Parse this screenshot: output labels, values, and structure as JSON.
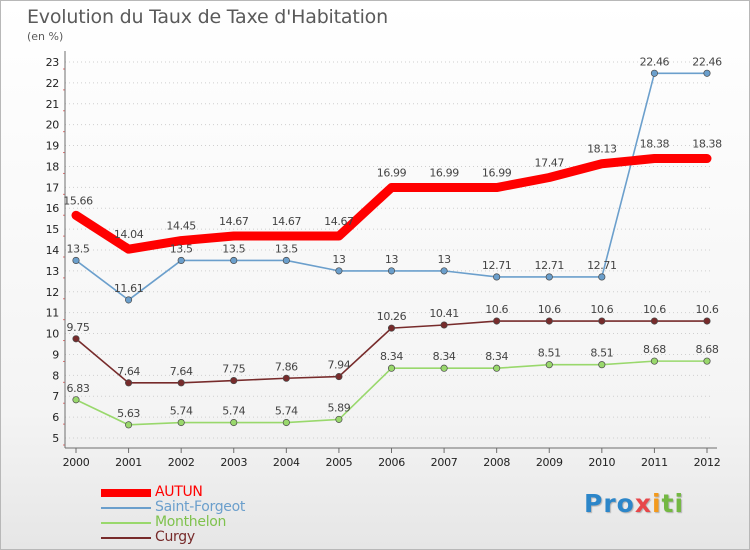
{
  "page": {
    "title": "Evolution du Taux de Taxe d'Habitation",
    "subtitle": "(en %)"
  },
  "legend": {
    "items": [
      "AUTUN",
      "Saint-Forgeot",
      "Monthelon",
      "Curgy"
    ]
  },
  "logo": {
    "parts": [
      "Pro",
      "x",
      "i",
      "ti"
    ]
  },
  "chart_data": {
    "type": "line",
    "title": "Evolution du Taux de Taxe d'Habitation",
    "subtitle": "(en %)",
    "xlabel": "",
    "ylabel": "",
    "ylim": [
      5,
      23
    ],
    "yticks": [
      5,
      6,
      7,
      8,
      9,
      10,
      11,
      12,
      13,
      14,
      15,
      16,
      17,
      18,
      19,
      20,
      21,
      22,
      23
    ],
    "x": [
      "2000",
      "2001",
      "2002",
      "2003",
      "2004",
      "2005",
      "2006",
      "2007",
      "2008",
      "2009",
      "2010",
      "2011",
      "2012"
    ],
    "grid": "horizontal dotted",
    "legend_position": "bottom-left",
    "series": [
      {
        "name": "AUTUN",
        "color": "#ff0000",
        "marker": false,
        "values": [
          15.66,
          14.04,
          14.45,
          14.67,
          14.67,
          14.67,
          16.99,
          16.99,
          16.99,
          17.47,
          18.13,
          18.38,
          18.38
        ],
        "labels": [
          "15.66",
          "14.04",
          "14.45",
          "14.67",
          "14.67",
          "14.67",
          "16.99",
          "16.99",
          "16.99",
          "17.47",
          "18.13",
          "18.38",
          "18.38"
        ]
      },
      {
        "name": "Saint-Forgeot",
        "color": "#6b9fcc",
        "marker": true,
        "values": [
          13.5,
          11.61,
          13.5,
          13.5,
          13.5,
          13,
          13,
          13,
          12.71,
          12.71,
          12.71,
          22.46,
          22.46
        ],
        "labels": [
          "13.5",
          "11.61",
          "13.5",
          "13.5",
          "13.5",
          "13",
          "13",
          "13",
          "12.71",
          "12.71",
          "12.71",
          "22.46",
          "22.46"
        ]
      },
      {
        "name": "Monthelon",
        "color": "#99d86c",
        "marker": true,
        "values": [
          6.83,
          5.63,
          5.74,
          5.74,
          5.74,
          5.89,
          8.34,
          8.34,
          8.34,
          8.51,
          8.51,
          8.68,
          8.68
        ],
        "labels": [
          "6.83",
          "5.63",
          "5.74",
          "5.74",
          "5.74",
          "5.89",
          "8.34",
          "8.34",
          "8.34",
          "8.51",
          "8.51",
          "8.68",
          "8.68"
        ]
      },
      {
        "name": "Curgy",
        "color": "#772b2b",
        "marker": true,
        "values": [
          9.75,
          7.64,
          7.64,
          7.75,
          7.86,
          7.94,
          10.26,
          10.41,
          10.6,
          10.6,
          10.6,
          10.6,
          10.6
        ],
        "labels": [
          "9.75",
          "7.64",
          "7.64",
          "7.75",
          "7.86",
          "7.94",
          "10.26",
          "10.41",
          "10.6",
          "10.6",
          "10.6",
          "10.6",
          "10.6"
        ]
      }
    ]
  }
}
